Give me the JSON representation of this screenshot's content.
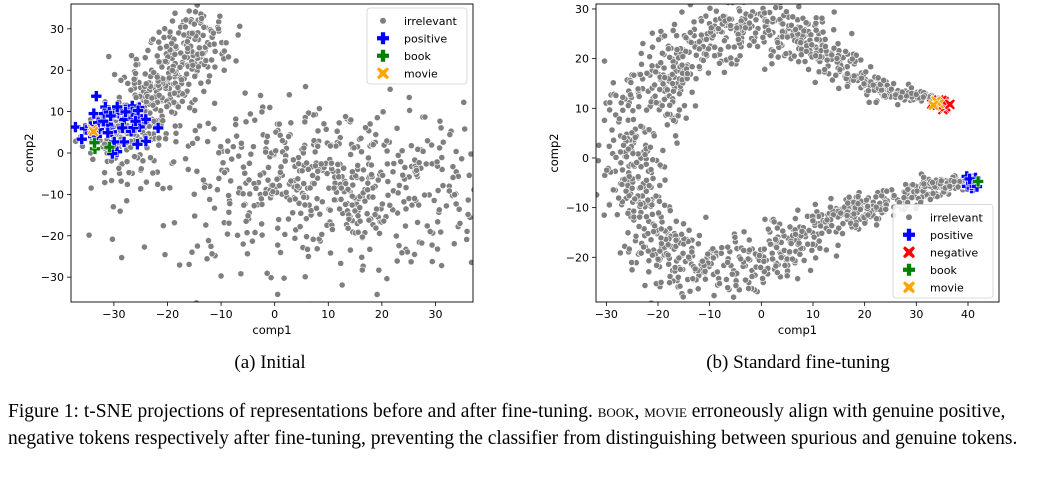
{
  "chart_data": [
    {
      "type": "scatter",
      "subcaption": "(a) Initial",
      "xlabel": "comp1",
      "ylabel": "comp2",
      "xlim": [
        -38,
        37
      ],
      "ylim": [
        -36,
        36
      ],
      "xticks": [
        -30,
        -20,
        -10,
        0,
        10,
        20,
        30
      ],
      "yticks": [
        -30,
        -20,
        -10,
        0,
        10,
        20,
        30
      ],
      "legend_position": "top-right",
      "legend": [
        "irrelevant",
        "positive",
        "book",
        "movie"
      ],
      "clusters": [
        {
          "series": "irrelevant",
          "center": [
            -22,
            20
          ],
          "spread": [
            7,
            8
          ],
          "count": 420,
          "note": "elongated band from (-30,0) to (-13,30)"
        },
        {
          "series": "irrelevant",
          "center": [
            10,
            -8
          ],
          "spread": [
            18,
            10
          ],
          "count": 620
        },
        {
          "series": "positive",
          "center": [
            -30,
            7
          ],
          "spread": [
            3,
            3
          ],
          "count": 60
        },
        {
          "series": "book",
          "center": [
            -33,
            2
          ],
          "spread": [
            0.8,
            0.8
          ],
          "count": 3
        },
        {
          "series": "movie",
          "center": [
            -34,
            5
          ],
          "spread": [
            0.5,
            0.5
          ],
          "count": 2
        }
      ]
    },
    {
      "type": "scatter",
      "subcaption": "(b) Standard fine-tuning",
      "xlabel": "comp1",
      "ylabel": "comp2",
      "xlim": [
        -32,
        46
      ],
      "ylim": [
        -29,
        31
      ],
      "xticks": [
        -30,
        -20,
        -10,
        0,
        10,
        20,
        30,
        40
      ],
      "yticks": [
        -20,
        -10,
        0,
        10,
        20,
        30
      ],
      "legend_position": "bottom-right",
      "legend": [
        "irrelevant",
        "positive",
        "negative",
        "book",
        "movie"
      ],
      "clusters": [
        {
          "series": "irrelevant",
          "shape": "C-curve",
          "count": 1400,
          "note": "arc from (33,12) through (-25,0) to (40,-5)"
        },
        {
          "series": "positive",
          "center": [
            40.5,
            -5
          ],
          "spread": [
            0.7,
            0.6
          ],
          "count": 14
        },
        {
          "series": "negative",
          "center": [
            35,
            11
          ],
          "spread": [
            0.8,
            0.6
          ],
          "count": 14
        },
        {
          "series": "book",
          "center": [
            42.5,
            -4.5
          ],
          "spread": [
            0.2,
            0.2
          ],
          "count": 1
        },
        {
          "series": "movie",
          "center": [
            33.5,
            11.5
          ],
          "spread": [
            0.8,
            0.5
          ],
          "count": 4
        }
      ]
    }
  ],
  "colors": {
    "irrelevant": "#7f7f7f",
    "positive": "#0000ff",
    "negative": "#ff0000",
    "book": "#008000",
    "movie": "#ffa500"
  },
  "caption": {
    "lead": "Figure 1: t-SNE projections of representations before and after fine-tuning.",
    "sc1": "book",
    "sep": ",",
    "sc2": "movie",
    "rest": "erroneously align with genuine positive, negative tokens respectively after fine-tuning, preventing the classifier from distinguishing between spurious and genuine tokens."
  }
}
